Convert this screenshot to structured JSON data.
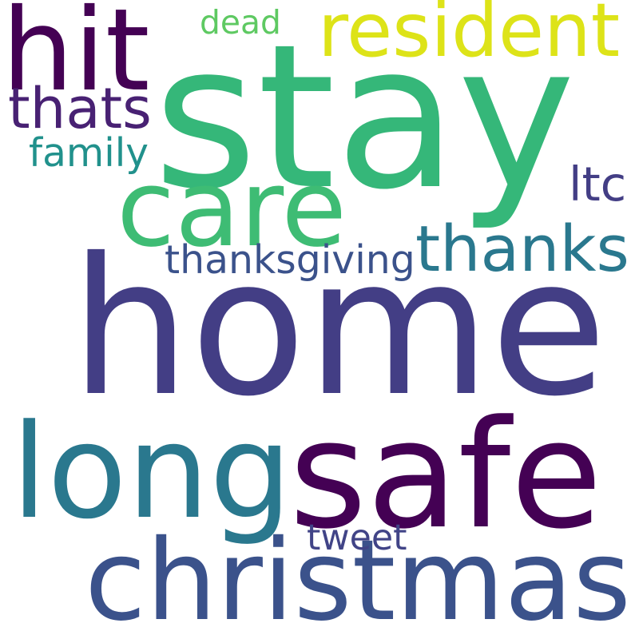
{
  "word_cloud": {
    "words": [
      {
        "text": "home",
        "color": "#433e85"
      },
      {
        "text": "stay",
        "color": "#35b779"
      },
      {
        "text": "safe",
        "color": "#440154"
      },
      {
        "text": "christmas",
        "color": "#3b528b"
      },
      {
        "text": "long",
        "color": "#2a788e"
      },
      {
        "text": "care",
        "color": "#3ebc74"
      },
      {
        "text": "hit",
        "color": "#440154"
      },
      {
        "text": "resident",
        "color": "#dde318"
      },
      {
        "text": "thanks",
        "color": "#2a788e"
      },
      {
        "text": "thats",
        "color": "#482173"
      },
      {
        "text": "thanksgiving",
        "color": "#3b528b"
      },
      {
        "text": "family",
        "color": "#21918c"
      },
      {
        "text": "dead",
        "color": "#5ec962"
      },
      {
        "text": "ltc",
        "color": "#433e85"
      },
      {
        "text": "tweet",
        "color": "#414487"
      }
    ]
  }
}
